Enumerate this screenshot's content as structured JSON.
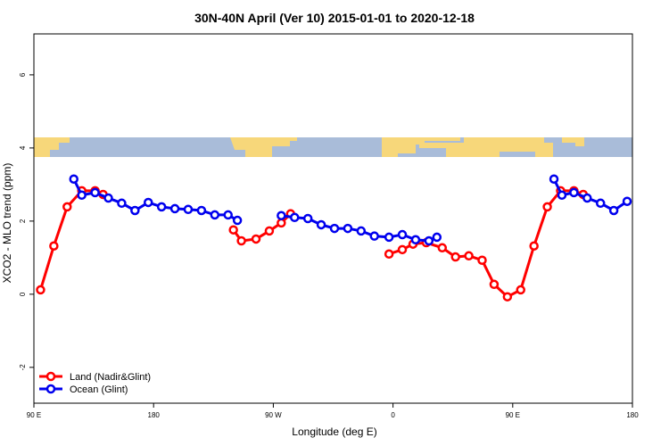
{
  "chart_data": {
    "type": "line",
    "title": "30N-40N April (Ver 10)   2015-01-01 to 2020-12-18",
    "x_label": "Longitude (deg E)",
    "y_label": "XCO2 - MLO trend (ppm)",
    "xlim": [
      90,
      540
    ],
    "ylim": [
      -2.98,
      7.12
    ],
    "xticks": [
      {
        "value": 90,
        "label": "90 E"
      },
      180,
      {
        "value": 270,
        "label": "90 W"
      },
      {
        "value": 360,
        "label": "0"
      },
      {
        "value": 450,
        "label": "90 E"
      },
      {
        "value": 540,
        "label": "180"
      }
    ],
    "yticks": [
      -2,
      0,
      2,
      4,
      6
    ],
    "legend": "bottom-left",
    "series": [
      {
        "name": "Land (Nadir&Glint)",
        "color": "#ff0000",
        "x": [
          95,
          105,
          115,
          126,
          136,
          142,
          null,
          240,
          246,
          257,
          267,
          276,
          283,
          null,
          357,
          367,
          375,
          385,
          397,
          407,
          417,
          427,
          436,
          446,
          456,
          466,
          476,
          486,
          496,
          503
        ],
        "values": [
          0.12,
          1.32,
          2.39,
          2.83,
          2.83,
          2.73,
          null,
          1.76,
          1.46,
          1.51,
          1.73,
          1.95,
          2.2,
          null,
          1.1,
          1.22,
          1.37,
          1.41,
          1.27,
          1.02,
          1.05,
          0.93,
          0.27,
          -0.07,
          0.12,
          1.32,
          2.39,
          2.83,
          2.83,
          2.73
        ]
      },
      {
        "name": "Ocean (Glint)",
        "color": "#0000ee",
        "x": [
          120,
          126,
          136,
          146,
          156,
          166,
          176,
          186,
          196,
          206,
          216,
          226,
          236,
          243,
          null,
          276,
          286,
          296,
          306,
          316,
          326,
          336,
          346,
          357,
          367,
          377,
          387,
          393,
          null,
          481,
          487,
          496,
          506,
          516,
          526,
          536
        ],
        "values": [
          3.15,
          2.71,
          2.78,
          2.63,
          2.49,
          2.29,
          2.51,
          2.39,
          2.34,
          2.32,
          2.29,
          2.17,
          2.17,
          2.02,
          null,
          2.15,
          2.1,
          2.07,
          1.9,
          1.8,
          1.8,
          1.73,
          1.59,
          1.56,
          1.63,
          1.49,
          1.46,
          1.56,
          null,
          3.15,
          2.71,
          2.78,
          2.63,
          2.49,
          2.29,
          2.54
        ]
      }
    ]
  }
}
